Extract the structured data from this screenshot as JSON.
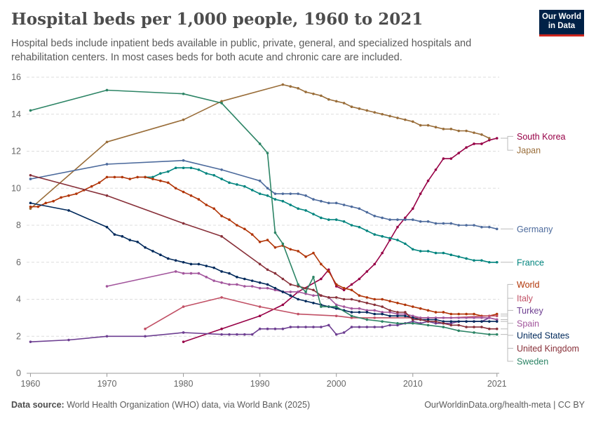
{
  "header": {
    "title": "Hospital beds per 1,000 people, 1960 to 2021",
    "subtitle": "Hospital beds include inpatient beds available in public, private, general, and specialized hospitals and rehabilitation centers. In most cases beds for both acute and chronic care are included.",
    "logo_line1": "Our World",
    "logo_line2": "in Data"
  },
  "footer": {
    "source_label": "Data source:",
    "source_text": "World Health Organization (WHO) data, via World Bank (2025)",
    "right_text": "OurWorldinData.org/health-meta | CC BY"
  },
  "colors": {
    "grid": "#dddddd",
    "axis_text": "#666666",
    "brand": "#002147",
    "brand_accent": "#ce261e"
  },
  "chart_data": {
    "type": "line",
    "xlim": [
      1959.5,
      2021.3
    ],
    "ylim": [
      0,
      16
    ],
    "x_ticks": [
      1960,
      1970,
      1980,
      1990,
      2000,
      2010,
      2021
    ],
    "y_ticks": [
      0,
      2,
      4,
      6,
      8,
      10,
      12,
      14,
      16
    ],
    "grid": true,
    "legend": "right-end labels",
    "series": [
      {
        "name": "South Korea",
        "color": "#970046",
        "x": [
          1980,
          1985,
          1990,
          1993,
          1995,
          1998,
          1999,
          2000,
          2001,
          2002,
          2003,
          2004,
          2005,
          2006,
          2007,
          2008,
          2009,
          2010,
          2011,
          2012,
          2013,
          2014,
          2015,
          2016,
          2017,
          2018,
          2019,
          2020,
          2021
        ],
        "values": [
          1.7,
          2.4,
          3.1,
          3.7,
          4.4,
          5.1,
          5.6,
          4.7,
          4.5,
          4.8,
          5.1,
          5.5,
          5.9,
          6.5,
          7.2,
          7.9,
          8.4,
          8.9,
          9.7,
          10.4,
          11.0,
          11.6,
          11.6,
          11.9,
          12.2,
          12.4,
          12.4,
          12.6,
          12.7
        ]
      },
      {
        "name": "Japan",
        "color": "#996d39",
        "x": [
          1960,
          1970,
          1980,
          1985,
          1993,
          1994,
          1995,
          1996,
          1997,
          1998,
          1999,
          2000,
          2001,
          2002,
          2003,
          2004,
          2005,
          2006,
          2007,
          2008,
          2009,
          2010,
          2011,
          2012,
          2013,
          2014,
          2015,
          2016,
          2017,
          2018,
          2019,
          2020
        ],
        "values": [
          8.9,
          12.5,
          13.7,
          14.7,
          15.6,
          15.5,
          15.4,
          15.2,
          15.1,
          15.0,
          14.8,
          14.7,
          14.6,
          14.4,
          14.3,
          14.2,
          14.1,
          14.0,
          13.9,
          13.8,
          13.7,
          13.6,
          13.4,
          13.4,
          13.3,
          13.2,
          13.2,
          13.1,
          13.1,
          13.0,
          12.9,
          12.7
        ]
      },
      {
        "name": "Germany",
        "color": "#4c6a9c",
        "x": [
          1960,
          1970,
          1980,
          1985,
          1990,
          1991,
          1992,
          1993,
          1994,
          1995,
          1996,
          1997,
          1998,
          1999,
          2000,
          2001,
          2002,
          2003,
          2004,
          2005,
          2006,
          2007,
          2008,
          2009,
          2010,
          2011,
          2012,
          2013,
          2014,
          2015,
          2016,
          2017,
          2018,
          2019,
          2020,
          2021
        ],
        "values": [
          10.5,
          11.3,
          11.5,
          11.0,
          10.4,
          10.0,
          9.7,
          9.7,
          9.7,
          9.7,
          9.6,
          9.4,
          9.3,
          9.2,
          9.2,
          9.1,
          9.0,
          8.9,
          8.7,
          8.5,
          8.4,
          8.3,
          8.3,
          8.3,
          8.3,
          8.2,
          8.2,
          8.1,
          8.1,
          8.1,
          8.0,
          8.0,
          8.0,
          7.9,
          7.9,
          7.8
        ]
      },
      {
        "name": "France",
        "color": "#00847e",
        "x": [
          1975,
          1976,
          1977,
          1978,
          1979,
          1980,
          1981,
          1982,
          1983,
          1984,
          1985,
          1986,
          1987,
          1988,
          1989,
          1990,
          1991,
          1992,
          1993,
          1994,
          1995,
          1996,
          1997,
          1998,
          1999,
          2000,
          2001,
          2002,
          2003,
          2004,
          2005,
          2006,
          2007,
          2008,
          2009,
          2010,
          2011,
          2012,
          2013,
          2014,
          2015,
          2016,
          2017,
          2018,
          2019,
          2020,
          2021
        ],
        "values": [
          10.6,
          10.6,
          10.8,
          10.9,
          11.1,
          11.1,
          11.1,
          11.0,
          10.8,
          10.7,
          10.5,
          10.3,
          10.2,
          10.1,
          9.9,
          9.7,
          9.6,
          9.4,
          9.3,
          9.1,
          8.9,
          8.8,
          8.6,
          8.4,
          8.3,
          8.3,
          8.2,
          8.0,
          7.9,
          7.7,
          7.5,
          7.4,
          7.3,
          7.2,
          7.0,
          6.7,
          6.6,
          6.6,
          6.5,
          6.5,
          6.4,
          6.3,
          6.2,
          6.1,
          6.1,
          6.0,
          6.0
        ]
      },
      {
        "name": "World",
        "color": "#b13507",
        "x": [
          1960,
          1961,
          1962,
          1963,
          1964,
          1965,
          1966,
          1967,
          1968,
          1969,
          1970,
          1971,
          1972,
          1973,
          1974,
          1975,
          1976,
          1977,
          1978,
          1979,
          1980,
          1981,
          1982,
          1983,
          1984,
          1985,
          1986,
          1987,
          1988,
          1989,
          1990,
          1991,
          1992,
          1993,
          1994,
          1995,
          1996,
          1997,
          1998,
          1999,
          2000,
          2001,
          2002,
          2003,
          2004,
          2005,
          2006,
          2007,
          2008,
          2009,
          2010,
          2011,
          2012,
          2013,
          2014,
          2015,
          2016,
          2017,
          2018,
          2019,
          2020,
          2021
        ],
        "values": [
          9.0,
          9.0,
          9.2,
          9.3,
          9.5,
          9.6,
          9.7,
          9.9,
          10.1,
          10.3,
          10.6,
          10.6,
          10.6,
          10.5,
          10.6,
          10.6,
          10.5,
          10.4,
          10.3,
          10.0,
          9.8,
          9.6,
          9.4,
          9.1,
          8.9,
          8.5,
          8.3,
          8.0,
          7.8,
          7.5,
          7.1,
          7.2,
          6.8,
          6.9,
          6.7,
          6.6,
          6.3,
          6.5,
          5.9,
          5.5,
          4.8,
          4.6,
          4.5,
          4.2,
          4.1,
          4.0,
          4.0,
          3.9,
          3.8,
          3.7,
          3.6,
          3.5,
          3.4,
          3.3,
          3.3,
          3.2,
          3.2,
          3.2,
          3.2,
          3.1,
          3.1,
          3.2
        ]
      },
      {
        "name": "Italy",
        "color": "#c15065",
        "x": [
          1975,
          1980,
          1985,
          1990,
          1995,
          2000,
          2002,
          2005,
          2010,
          2015,
          2020,
          2021
        ],
        "values": [
          2.4,
          3.6,
          4.1,
          3.6,
          3.2,
          3.1,
          3.0,
          3.0,
          3.0,
          3.0,
          3.1,
          3.1
        ]
      },
      {
        "name": "Turkey",
        "color": "#6d3e91",
        "x": [
          1960,
          1965,
          1970,
          1975,
          1980,
          1985,
          1986,
          1987,
          1988,
          1989,
          1990,
          1991,
          1992,
          1993,
          1994,
          1995,
          1996,
          1997,
          1998,
          1999,
          2000,
          2001,
          2002,
          2003,
          2004,
          2005,
          2006,
          2007,
          2008,
          2009,
          2010,
          2011,
          2012,
          2013,
          2014,
          2015,
          2016,
          2017,
          2018,
          2019,
          2020,
          2021
        ],
        "values": [
          1.7,
          1.8,
          2.0,
          2.0,
          2.2,
          2.1,
          2.1,
          2.1,
          2.1,
          2.1,
          2.4,
          2.4,
          2.4,
          2.4,
          2.5,
          2.5,
          2.5,
          2.5,
          2.5,
          2.6,
          2.1,
          2.2,
          2.5,
          2.5,
          2.5,
          2.5,
          2.5,
          2.6,
          2.6,
          2.7,
          2.8,
          2.7,
          2.8,
          2.7,
          2.7,
          2.7,
          2.8,
          2.8,
          2.8,
          2.8,
          3.0,
          2.9
        ]
      },
      {
        "name": "Spain",
        "color": "#a2559c",
        "x": [
          1970,
          1979,
          1980,
          1981,
          1982,
          1983,
          1984,
          1985,
          1986,
          1987,
          1988,
          1989,
          1990,
          1991,
          1992,
          1993,
          1994,
          1995,
          1996,
          1997,
          1998,
          1999,
          2000,
          2001,
          2002,
          2003,
          2004,
          2005,
          2006,
          2007,
          2008,
          2009,
          2010,
          2011,
          2012,
          2013,
          2014,
          2015,
          2016,
          2017,
          2018,
          2019,
          2020,
          2021
        ],
        "values": [
          4.7,
          5.5,
          5.4,
          5.4,
          5.4,
          5.2,
          5.0,
          4.9,
          4.8,
          4.8,
          4.7,
          4.7,
          4.6,
          4.6,
          4.5,
          4.4,
          4.4,
          4.4,
          4.3,
          4.2,
          4.2,
          4.1,
          3.7,
          3.6,
          3.5,
          3.5,
          3.4,
          3.4,
          3.3,
          3.3,
          3.2,
          3.2,
          3.1,
          3.0,
          3.0,
          3.0,
          3.0,
          3.0,
          3.0,
          3.0,
          3.0,
          3.0,
          3.0,
          2.9
        ]
      },
      {
        "name": "United States",
        "color": "#00295b",
        "x": [
          1960,
          1965,
          1970,
          1971,
          1972,
          1973,
          1974,
          1975,
          1976,
          1977,
          1978,
          1979,
          1980,
          1981,
          1982,
          1983,
          1984,
          1985,
          1986,
          1987,
          1988,
          1989,
          1990,
          1991,
          1992,
          1993,
          1994,
          1995,
          1996,
          1997,
          1998,
          1999,
          2000,
          2001,
          2002,
          2003,
          2004,
          2005,
          2006,
          2007,
          2008,
          2009,
          2010,
          2011,
          2012,
          2013,
          2014,
          2015,
          2016,
          2017,
          2018,
          2019,
          2020,
          2021
        ],
        "values": [
          9.2,
          8.8,
          7.9,
          7.5,
          7.4,
          7.2,
          7.1,
          6.8,
          6.6,
          6.4,
          6.2,
          6.1,
          6.0,
          5.9,
          5.9,
          5.8,
          5.7,
          5.5,
          5.4,
          5.2,
          5.1,
          5.0,
          4.9,
          4.8,
          4.6,
          4.4,
          4.2,
          4.0,
          3.9,
          3.8,
          3.7,
          3.6,
          3.5,
          3.4,
          3.3,
          3.3,
          3.3,
          3.2,
          3.2,
          3.1,
          3.1,
          3.1,
          3.0,
          2.9,
          2.9,
          2.9,
          2.8,
          2.8,
          2.8,
          2.8,
          2.8,
          2.8,
          2.8,
          2.8
        ]
      },
      {
        "name": "United Kingdom",
        "color": "#883039",
        "x": [
          1960,
          1970,
          1980,
          1985,
          1990,
          1991,
          1992,
          1993,
          1994,
          1995,
          1996,
          1997,
          1998,
          1999,
          2000,
          2001,
          2002,
          2003,
          2004,
          2005,
          2006,
          2007,
          2008,
          2009,
          2010,
          2011,
          2012,
          2013,
          2014,
          2015,
          2016,
          2017,
          2018,
          2019,
          2020,
          2021
        ],
        "values": [
          10.7,
          9.6,
          8.1,
          7.4,
          5.9,
          5.6,
          5.4,
          5.1,
          4.8,
          4.7,
          4.6,
          4.5,
          4.2,
          4.1,
          4.1,
          4.0,
          4.0,
          3.9,
          3.8,
          3.7,
          3.6,
          3.4,
          3.3,
          3.3,
          2.9,
          2.9,
          2.8,
          2.8,
          2.7,
          2.6,
          2.6,
          2.5,
          2.5,
          2.5,
          2.4,
          2.4
        ]
      },
      {
        "name": "Sweden",
        "color": "#2c8465",
        "x": [
          1960,
          1970,
          1980,
          1985,
          1990,
          1991,
          1992,
          1993,
          1995,
          1996,
          1997,
          1998,
          2000,
          2002,
          2004,
          2006,
          2008,
          2010,
          2012,
          2014,
          2016,
          2018,
          2020,
          2021
        ],
        "values": [
          14.2,
          15.3,
          15.1,
          14.6,
          12.4,
          11.9,
          7.6,
          7.0,
          4.8,
          4.4,
          5.2,
          3.6,
          3.6,
          3.1,
          2.9,
          2.8,
          2.7,
          2.7,
          2.6,
          2.5,
          2.3,
          2.2,
          2.1,
          2.1
        ]
      }
    ],
    "end_labels": [
      {
        "name": "South Korea",
        "color": "#970046",
        "label_y": 12.8
      },
      {
        "name": "Japan",
        "color": "#996d39",
        "label_y": 12.05
      },
      {
        "name": "Germany",
        "color": "#4c6a9c",
        "label_y": 7.8
      },
      {
        "name": "France",
        "color": "#00847e",
        "label_y": 6.0
      },
      {
        "name": "World",
        "color": "#b13507",
        "label_y": 4.8
      },
      {
        "name": "Italy",
        "color": "#c15065",
        "label_y": 4.05
      },
      {
        "name": "Turkey",
        "color": "#6d3e91",
        "label_y": 3.4
      },
      {
        "name": "Spain",
        "color": "#a2559c",
        "label_y": 2.7
      },
      {
        "name": "United States",
        "color": "#00295b",
        "label_y": 2.05
      },
      {
        "name": "United Kingdom",
        "color": "#883039",
        "label_y": 1.35
      },
      {
        "name": "Sweden",
        "color": "#2c8465",
        "label_y": 0.65
      }
    ]
  }
}
